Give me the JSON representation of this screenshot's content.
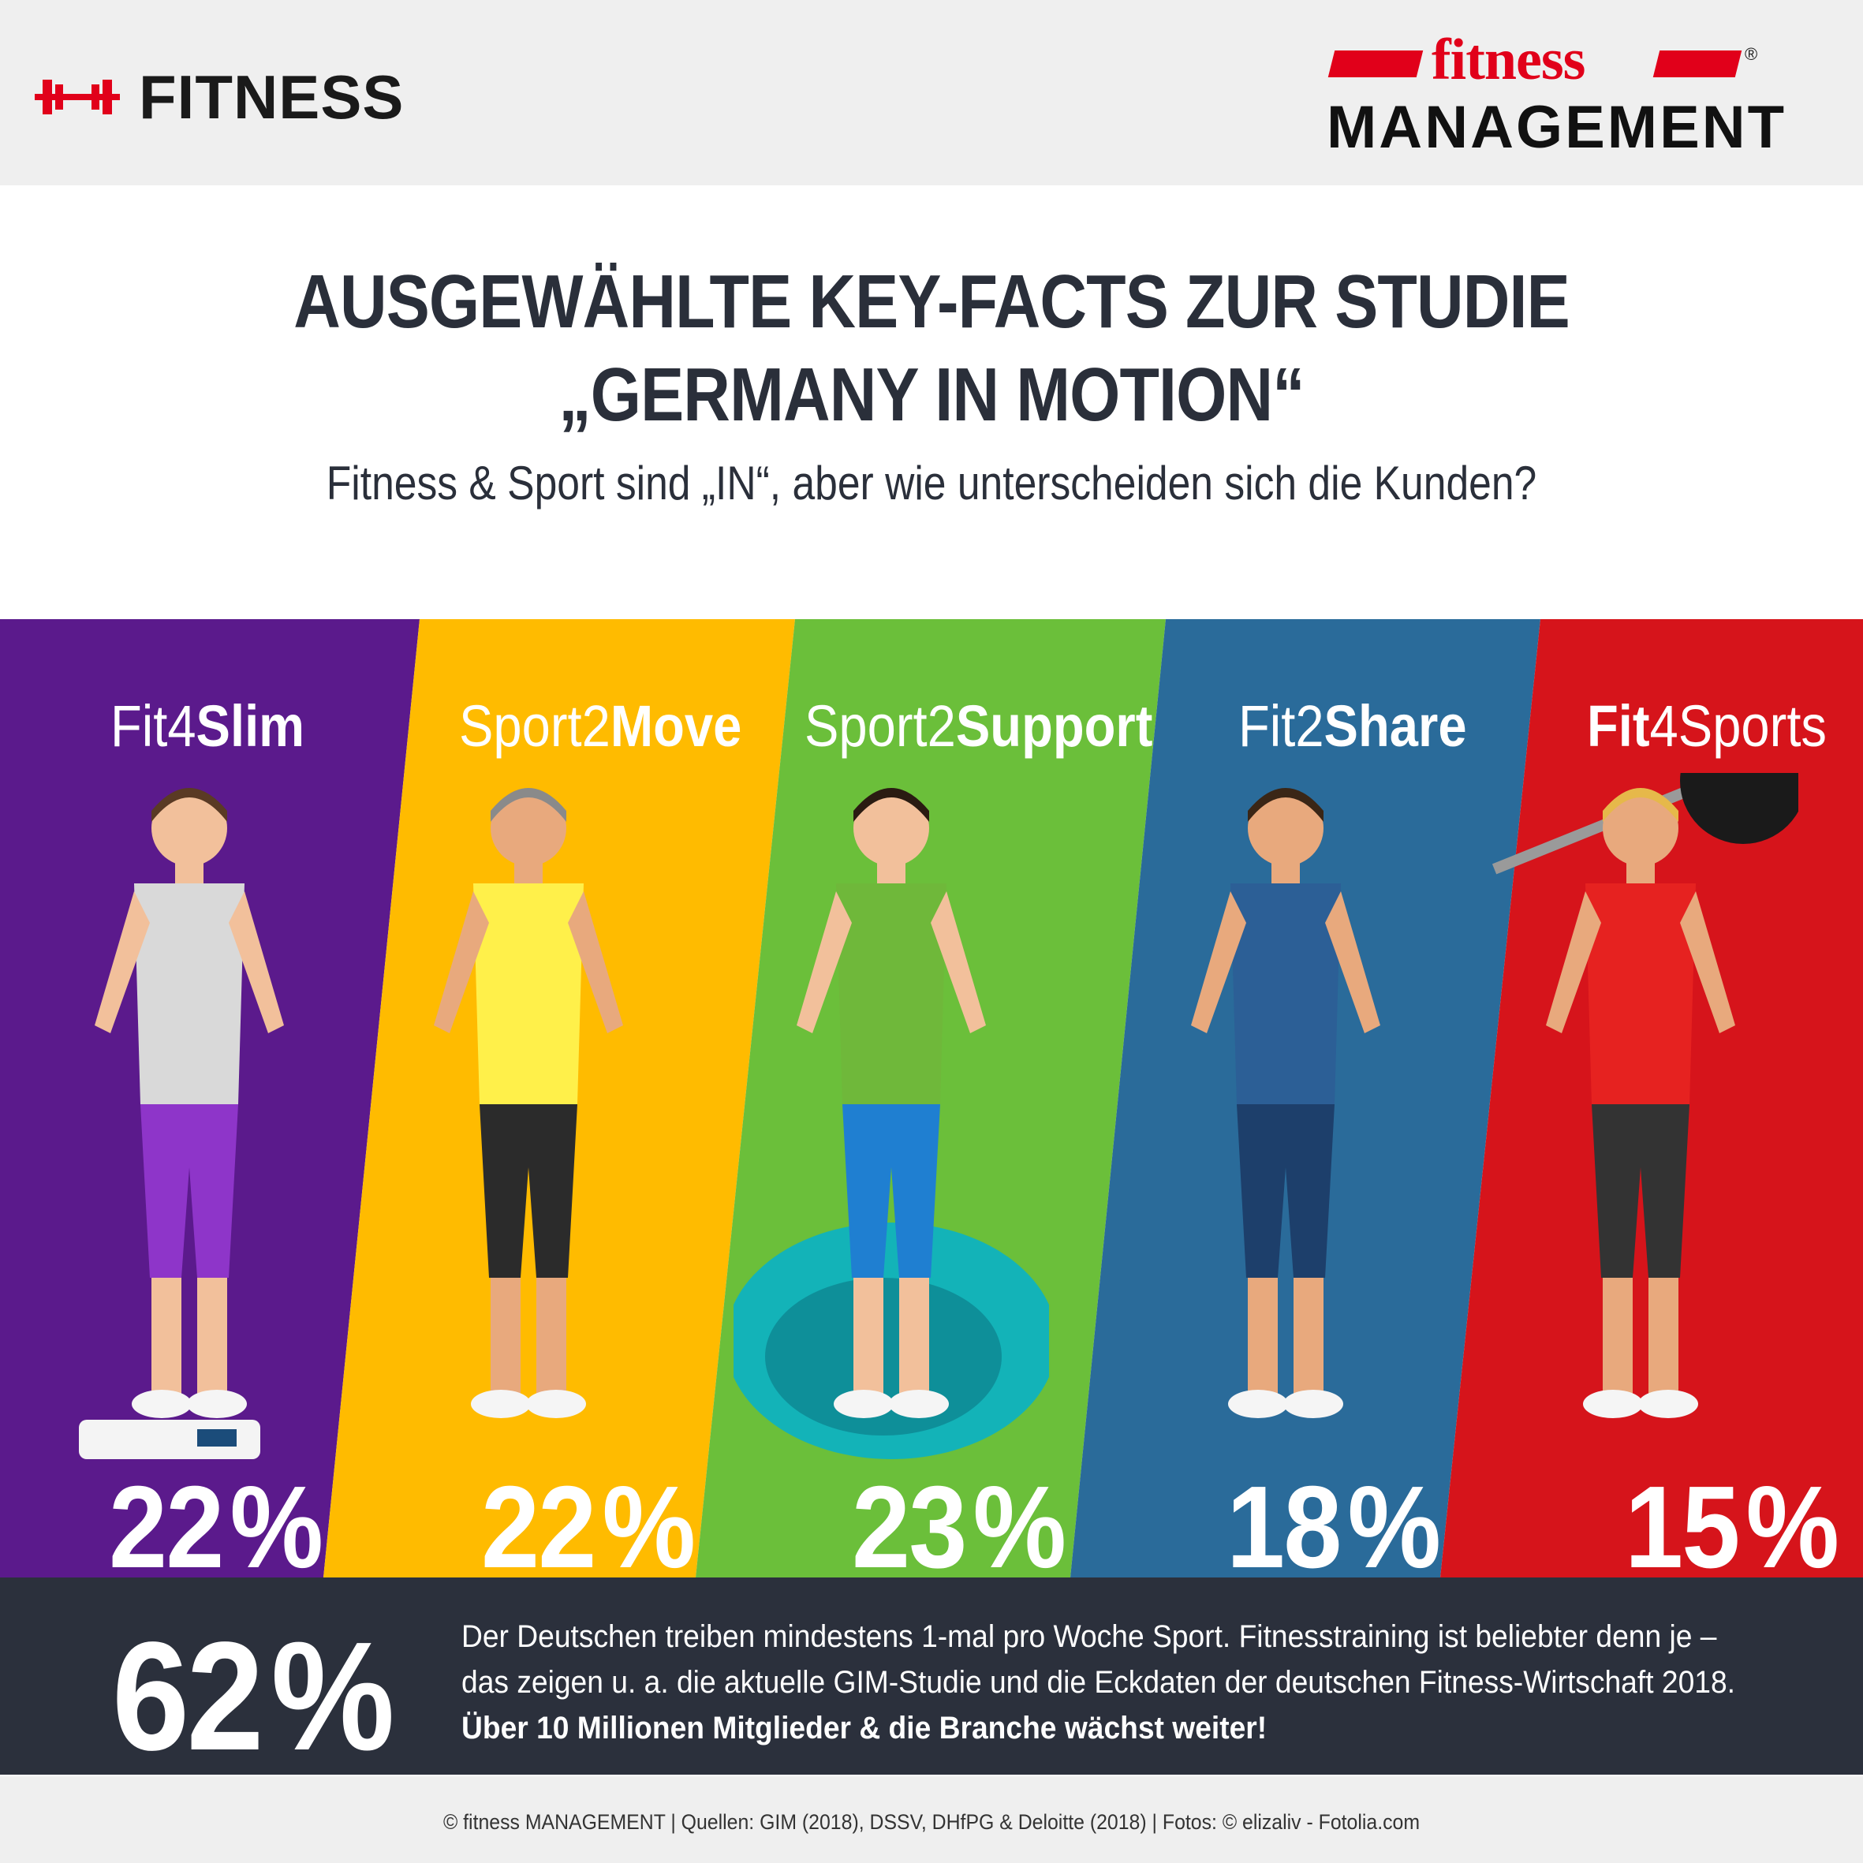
{
  "header": {
    "brand_left": "FITNESS",
    "brand_right_top": "fitness",
    "brand_right_bottom": "MANAGEMENT",
    "registered_mark": "®",
    "accent": "#e1001a",
    "icon": "dumbbell-icon"
  },
  "title": {
    "line1": "AUSGEWÄHLTE KEY-FACTS ZUR STUDIE",
    "line2": "„GERMANY IN MOTION“",
    "subtitle": "Fitness & Sport sind „IN“, aber wie unterscheiden sich die Kunden?"
  },
  "chart_data": {
    "type": "bar",
    "categories": [
      "Fit4Slim",
      "Sport2Move",
      "Sport2Support",
      "Fit2Share",
      "Fit4Sports"
    ],
    "values": [
      22,
      22,
      23,
      18,
      15
    ],
    "unit": "%",
    "label_parts": [
      {
        "light": "Fit4",
        "bold": "Slim",
        "bold_first": false
      },
      {
        "light": "Sport2",
        "bold": "Move",
        "bold_first": false
      },
      {
        "light": "Sport2",
        "bold": "Support",
        "bold_first": false
      },
      {
        "light": "Fit2",
        "bold": "Share",
        "bold_first": false
      },
      {
        "light": "4Sports",
        "bold": "Fit",
        "bold_first": true
      }
    ],
    "colors": [
      "#5b1a8c",
      "#ffbb00",
      "#6bbf3a",
      "#2a6b9a",
      "#d6141b"
    ],
    "figures": [
      "woman-on-scale-icon",
      "running-man-icon",
      "woman-with-dumbbells-icon",
      "flexing-man-icon",
      "man-lifting-barbell-icon"
    ]
  },
  "summary": {
    "big_value": "62",
    "big_unit": "%",
    "line1": "Der Deutschen treiben mindestens 1-mal pro Woche Sport. Fitnesstraining ist beliebter denn je –",
    "line2": "das zeigen u. a. die aktuelle GIM-Studie und die Eckdaten der deutschen Fitness-Wirtschaft 2018.",
    "line3": "Über 10 Millionen Mitglieder & die Branche wächst weiter!"
  },
  "footer": {
    "text": "© fitness MANAGEMENT  |  Quellen: GIM (2018), DSSV, DHfPG & Deloitte (2018)  |  Fotos: © elizaliv - Fotolia.com"
  }
}
